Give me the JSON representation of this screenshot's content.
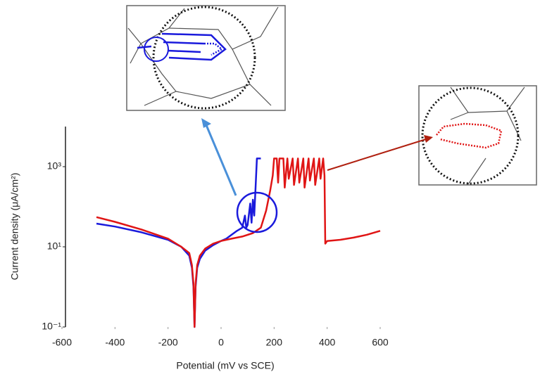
{
  "chart_data": {
    "type": "line",
    "xlabel": "Potential (mV vs SCE)",
    "ylabel": "Current density (μA/cm²)",
    "xlim": [
      -600,
      600
    ],
    "xticks": [
      -600,
      -400,
      -200,
      0,
      200,
      400,
      600
    ],
    "ylim": [
      0.1,
      10000
    ],
    "log_y": true,
    "yticks": [
      {
        "value": 0.1,
        "label": "10⁻¹"
      },
      {
        "value": 10,
        "label": "10¹"
      },
      {
        "value": 1000,
        "label": "10³"
      }
    ],
    "series": [
      {
        "color": "#1a1adc",
        "x": [
          -470,
          -400,
          -300,
          -200,
          -150,
          -120,
          -110,
          -104,
          -100,
          -96,
          -90,
          -80,
          -60,
          -30,
          0,
          20,
          40,
          60,
          80,
          90,
          95,
          100,
          110,
          115,
          120,
          125,
          130,
          135,
          140,
          145,
          150
        ],
        "values": [
          38,
          32,
          23,
          15,
          10,
          6,
          3,
          1,
          0.1,
          1,
          3,
          5,
          8,
          11,
          14,
          16,
          20,
          25,
          30,
          60,
          30,
          35,
          120,
          40,
          150,
          60,
          300,
          1600,
          1600,
          1600,
          1600
        ]
      },
      {
        "color": "#e01515",
        "x": [
          -470,
          -400,
          -300,
          -200,
          -150,
          -120,
          -110,
          -104,
          -100,
          -96,
          -90,
          -80,
          -60,
          -30,
          0,
          40,
          80,
          120,
          150,
          170,
          185,
          195,
          200,
          210,
          215,
          220,
          235,
          240,
          250,
          255,
          270,
          275,
          290,
          295,
          310,
          315,
          330,
          335,
          350,
          355,
          370,
          375,
          385,
          390,
          393,
          400,
          450,
          500,
          550,
          600
        ],
        "values": [
          55,
          42,
          27,
          16,
          10,
          7,
          3.5,
          1.2,
          0.1,
          1.2,
          3.5,
          6,
          9,
          12,
          14,
          16,
          18,
          22,
          30,
          80,
          250,
          600,
          1600,
          1600,
          400,
          1600,
          1600,
          300,
          1600,
          500,
          1600,
          350,
          1600,
          400,
          1600,
          300,
          1600,
          450,
          1600,
          350,
          1600,
          500,
          1600,
          600,
          12,
          14,
          15,
          17,
          20,
          25
        ]
      }
    ]
  }
}
